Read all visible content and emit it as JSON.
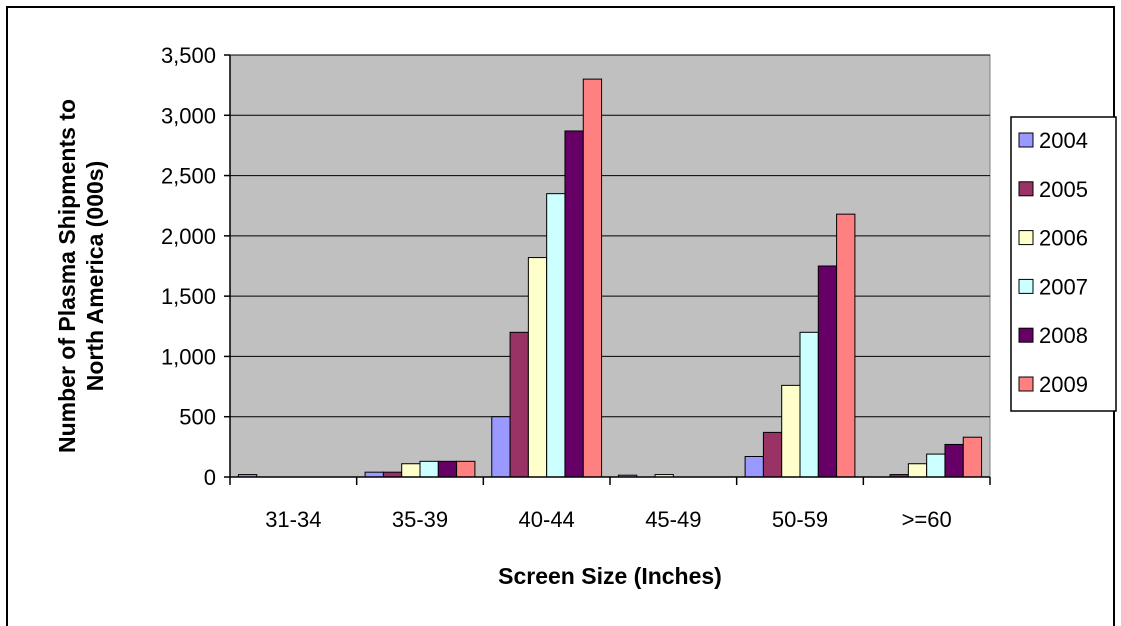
{
  "chart_data": {
    "type": "bar",
    "title": "",
    "xlabel": "Screen Size (Inches)",
    "ylabel_lines": [
      "Number of Plasma Shipments to",
      "North America (000s)"
    ],
    "ylim": [
      0,
      3500
    ],
    "yticks": [
      0,
      500,
      1000,
      1500,
      2000,
      2500,
      3000,
      3500
    ],
    "ytick_labels": [
      "0",
      "500",
      "1,000",
      "1,500",
      "2,000",
      "2,500",
      "3,000",
      "3,500"
    ],
    "grid": true,
    "legend_position": "right",
    "categories": [
      "31-34",
      "35-39",
      "40-44",
      "45-49",
      "50-59",
      ">=60"
    ],
    "series": [
      {
        "name": "2004",
        "color": "#9999ff",
        "values": [
          20,
          40,
          500,
          15,
          170,
          0
        ]
      },
      {
        "name": "2005",
        "color": "#993366",
        "values": [
          0,
          40,
          1200,
          0,
          370,
          20
        ]
      },
      {
        "name": "2006",
        "color": "#ffffcc",
        "values": [
          0,
          110,
          1820,
          20,
          760,
          110
        ]
      },
      {
        "name": "2007",
        "color": "#ccffff",
        "values": [
          0,
          130,
          2350,
          0,
          1200,
          190
        ]
      },
      {
        "name": "2008",
        "color": "#660066",
        "values": [
          0,
          130,
          2870,
          0,
          1750,
          270
        ]
      },
      {
        "name": "2009",
        "color": "#ff8080",
        "values": [
          0,
          130,
          3300,
          0,
          2180,
          330
        ]
      }
    ],
    "plot_background": "#c0c0c0"
  }
}
